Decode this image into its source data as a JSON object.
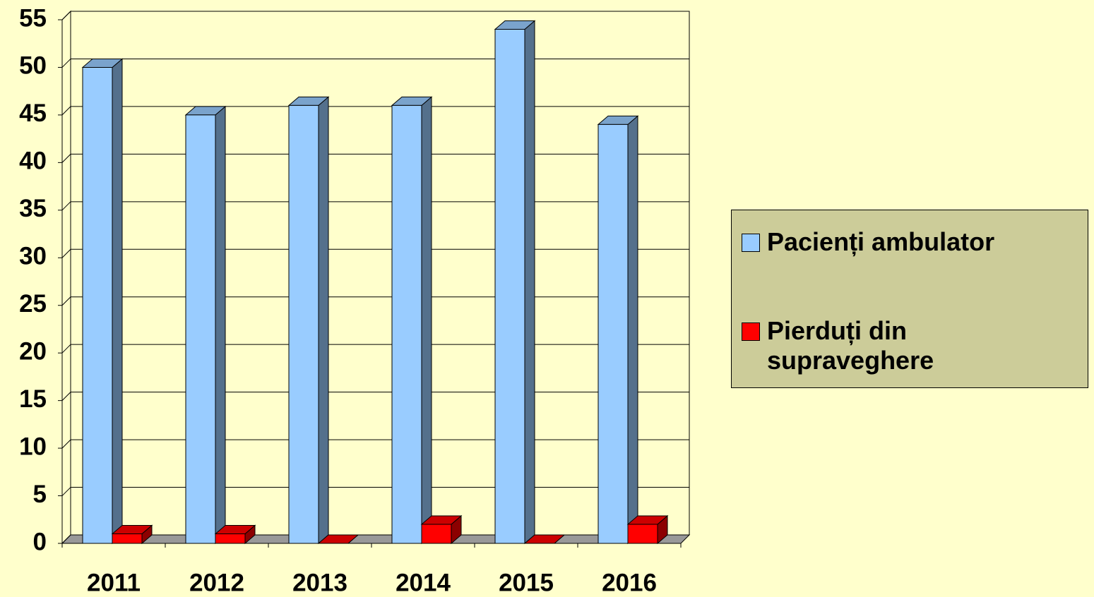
{
  "chart_data": {
    "type": "bar3d",
    "categories": [
      "2011",
      "2012",
      "2013",
      "2014",
      "2015",
      "2016"
    ],
    "series": [
      {
        "name": "Pacienți ambulator",
        "color": "#99CCFF",
        "values": [
          50,
          45,
          46,
          46,
          54,
          44
        ]
      },
      {
        "name": "Pierduți din supraveghere",
        "color": "#FF0000",
        "values": [
          1,
          1,
          0,
          2,
          0,
          2
        ]
      }
    ],
    "ylim": [
      0,
      55
    ],
    "yticks": [
      0,
      5,
      10,
      15,
      20,
      25,
      30,
      35,
      40,
      45,
      50,
      55
    ],
    "grid": true,
    "legend": "right"
  }
}
